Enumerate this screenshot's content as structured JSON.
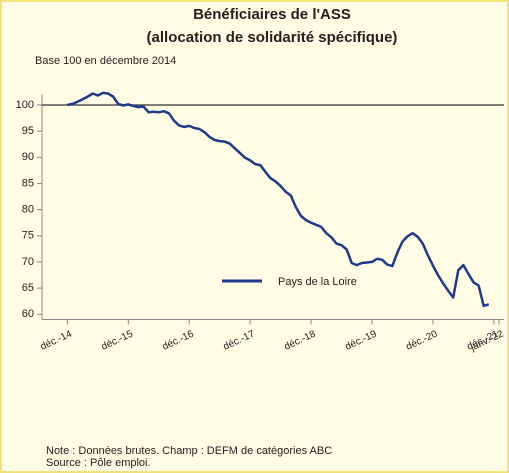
{
  "chart_data": {
    "type": "line",
    "title": [
      "Bénéficiaires de l'ASS",
      "(allocation de solidarité spécifique)"
    ],
    "subtitle": "Base 100 en décembre 2014",
    "x": [
      "2014-12",
      "2015-01",
      "2015-02",
      "2015-03",
      "2015-04",
      "2015-05",
      "2015-06",
      "2015-07",
      "2015-08",
      "2015-09",
      "2015-10",
      "2015-11",
      "2015-12",
      "2016-01",
      "2016-02",
      "2016-03",
      "2016-04",
      "2016-05",
      "2016-06",
      "2016-07",
      "2016-08",
      "2016-09",
      "2016-10",
      "2016-11",
      "2016-12",
      "2017-01",
      "2017-02",
      "2017-03",
      "2017-04",
      "2017-05",
      "2017-06",
      "2017-07",
      "2017-08",
      "2017-09",
      "2017-10",
      "2017-11",
      "2017-12",
      "2018-01",
      "2018-02",
      "2018-03",
      "2018-04",
      "2018-05",
      "2018-06",
      "2018-07",
      "2018-08",
      "2018-09",
      "2018-10",
      "2018-11",
      "2018-12",
      "2019-01",
      "2019-02",
      "2019-03",
      "2019-04",
      "2019-05",
      "2019-06",
      "2019-07",
      "2019-08",
      "2019-09",
      "2019-10",
      "2019-11",
      "2019-12",
      "2020-01",
      "2020-02",
      "2020-03",
      "2020-04",
      "2020-05",
      "2020-06",
      "2020-07",
      "2020-08",
      "2020-09",
      "2020-10",
      "2020-11",
      "2020-12",
      "2021-01",
      "2021-02",
      "2021-03",
      "2021-04",
      "2021-05",
      "2021-06",
      "2021-07",
      "2021-08",
      "2021-09",
      "2021-10",
      "2021-11"
    ],
    "series": [
      {
        "name": "Pays de la Loire",
        "color": "#1f3a8a",
        "values": [
          100,
          100.2,
          100.6,
          101.1,
          101.6,
          102.2,
          101.8,
          102.3,
          102.2,
          101.6,
          100.2,
          99.9,
          100.1,
          99.8,
          99.6,
          99.7,
          98.6,
          98.7,
          98.6,
          98.8,
          98.4,
          97.0,
          96.1,
          95.8,
          96.0,
          95.6,
          95.4,
          94.8,
          93.9,
          93.3,
          93.1,
          93.0,
          92.6,
          91.7,
          90.8,
          89.9,
          89.4,
          88.7,
          88.5,
          87.2,
          86.0,
          85.4,
          84.5,
          83.4,
          82.7,
          80.5,
          78.8,
          78.0,
          77.5,
          77.1,
          76.7,
          75.5,
          74.7,
          73.5,
          73.2,
          72.4,
          69.8,
          69.4,
          69.8,
          69.9,
          70.0,
          70.6,
          70.4,
          69.5,
          69.2,
          71.8,
          73.9,
          74.9,
          75.5,
          74.8,
          73.5,
          71.3,
          69.3,
          67.5,
          65.9,
          64.5,
          63.2,
          68.4,
          69.4,
          67.7,
          66.1,
          65.5,
          61.6,
          61.9
        ]
      }
    ],
    "xlim": [
      "2014-07",
      "2022-02"
    ],
    "xticks": [
      {
        "value": "2014-12",
        "label": "déc.-14"
      },
      {
        "value": "2015-12",
        "label": "déc.-15"
      },
      {
        "value": "2016-12",
        "label": "déc.-16"
      },
      {
        "value": "2017-12",
        "label": "déc.-17"
      },
      {
        "value": "2018-12",
        "label": "déc.-18"
      },
      {
        "value": "2019-12",
        "label": "déc.-19"
      },
      {
        "value": "2020-12",
        "label": "déc.-20"
      },
      {
        "value": "2021-12",
        "label": "déc.-21"
      },
      {
        "value": "2022-01",
        "label": "janv.-22"
      }
    ],
    "ylim": [
      59,
      102
    ],
    "yticks": [
      60,
      65,
      70,
      75,
      80,
      85,
      90,
      95,
      100
    ],
    "reference_line": 100,
    "legend": "bottom",
    "notes": [
      "Note : Données brutes. Champ : DEFM de catégories ABC",
      "Source : Pôle emploi."
    ]
  }
}
